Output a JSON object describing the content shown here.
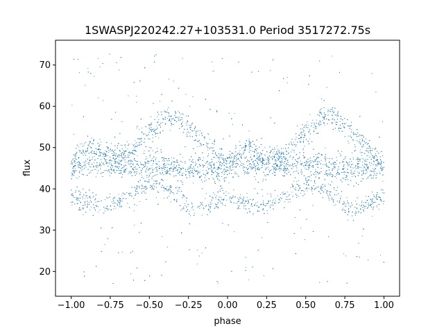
{
  "chart_data": {
    "type": "scatter",
    "title": "1SWASPJ220242.27+103531.0 Period 3517272.75s",
    "xlabel": "phase",
    "ylabel": "flux",
    "xlim": [
      -1.1,
      1.1
    ],
    "ylim": [
      14,
      76
    ],
    "x_ticks": [
      -1.0,
      -0.75,
      -0.5,
      -0.25,
      0.0,
      0.25,
      0.5,
      0.75,
      1.0
    ],
    "x_tick_labels": [
      "−1.00",
      "−0.75",
      "−0.50",
      "−0.25",
      "0.00",
      "0.25",
      "0.50",
      "0.75",
      "1.00"
    ],
    "y_ticks": [
      20,
      30,
      40,
      50,
      60,
      70
    ],
    "y_tick_labels": [
      "20",
      "30",
      "40",
      "50",
      "60",
      "70"
    ],
    "grid": false,
    "legend": "none",
    "point_color": "#1f77b4",
    "series": [
      {
        "values_description_free": true,
        "x": [
          -1.0,
          -0.95,
          -0.9,
          -0.85,
          -0.8,
          -0.75,
          -0.7,
          -0.65,
          -0.6,
          -0.55,
          -0.5,
          -0.45,
          -0.4,
          -0.35,
          -0.3,
          -0.25,
          -0.2,
          -0.15,
          -0.1,
          -0.05,
          0.0,
          0.05,
          0.1,
          0.15,
          0.2,
          0.25,
          0.3,
          0.35,
          0.4,
          0.45,
          0.5,
          0.55,
          0.6,
          0.65,
          0.7,
          0.75,
          0.8,
          0.85,
          0.9,
          0.95,
          1.0
        ],
        "y_upper": [
          45,
          49,
          50,
          50,
          49,
          48,
          48,
          48,
          50,
          52,
          54,
          55,
          57,
          58,
          57,
          55,
          53,
          51,
          50,
          48,
          45,
          49,
          50,
          50,
          49,
          48,
          48,
          48,
          50,
          52,
          54,
          55,
          57,
          58,
          57,
          55,
          53,
          51,
          50,
          48,
          45
        ],
        "y_mid": [
          45,
          46,
          46,
          46,
          46,
          46,
          46,
          46,
          46,
          46,
          46,
          46,
          46,
          45,
          45,
          45,
          45,
          45,
          45,
          45,
          45,
          46,
          46,
          46,
          46,
          46,
          46,
          46,
          46,
          46,
          46,
          46,
          46,
          45,
          45,
          45,
          45,
          45,
          45,
          45,
          45
        ],
        "y_lower": [
          38,
          37,
          37,
          36,
          36,
          36,
          37,
          38,
          39,
          40,
          41,
          41,
          40,
          39,
          38,
          36,
          35,
          36,
          37,
          38,
          38,
          37,
          37,
          36,
          36,
          36,
          37,
          38,
          39,
          40,
          41,
          41,
          40,
          39,
          38,
          36,
          35,
          36,
          37,
          38,
          38
        ]
      }
    ]
  }
}
